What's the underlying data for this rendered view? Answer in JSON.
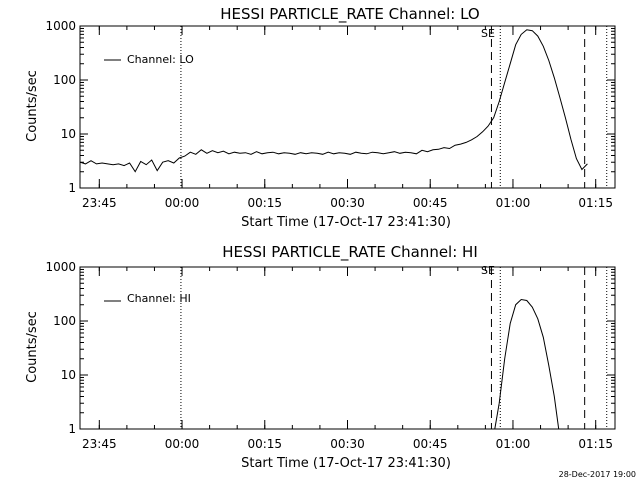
{
  "chart_data": [
    {
      "type": "line",
      "title": "HESSI PARTICLE_RATE Channel: LO",
      "xlabel": "Start Time (17-Oct-17 23:41:30)",
      "ylabel": "Counts/sec",
      "yscale": "log",
      "ylim": [
        1,
        1000
      ],
      "xlim_minutes": [
        0,
        97
      ],
      "grid": false,
      "x_tick_labels": [
        "23:45",
        "00:00",
        "00:15",
        "00:30",
        "00:45",
        "01:00",
        "01:15"
      ],
      "x_tick_minutes": [
        3.5,
        18.5,
        33.5,
        48.5,
        63.5,
        78.5,
        93.5
      ],
      "y_tick_labels": [
        "1",
        "10",
        "100",
        "1000"
      ],
      "y_tick_values": [
        1,
        10,
        100,
        1000
      ],
      "legend": {
        "entry": "Channel: LO",
        "placement": "top-left"
      },
      "markers": {
        "dotted_minutes": [
          18.3,
          76.2,
          95.5
        ],
        "dashed_minutes": [
          74.6,
          91.5
        ],
        "label": "SE",
        "label_minute": 75.4
      },
      "series": [
        {
          "name": "Channel: LO",
          "x": [
            0,
            1,
            2,
            3,
            4,
            5,
            6,
            7,
            8,
            9,
            10,
            11,
            12,
            13,
            14,
            15,
            16,
            17,
            18,
            19,
            20,
            21,
            22,
            23,
            24,
            25,
            26,
            27,
            28,
            29,
            30,
            31,
            32,
            33,
            34,
            35,
            36,
            37,
            38,
            39,
            40,
            41,
            42,
            43,
            44,
            45,
            46,
            47,
            48,
            49,
            50,
            51,
            52,
            53,
            54,
            55,
            56,
            57,
            58,
            59,
            60,
            61,
            62,
            63,
            64,
            65,
            66,
            67,
            68,
            69,
            70,
            71,
            72,
            73,
            74,
            75,
            76,
            77,
            78,
            79,
            80,
            81,
            82,
            83,
            84,
            85,
            86,
            87,
            88,
            89,
            90,
            91,
            92
          ],
          "y": [
            3.0,
            2.8,
            3.2,
            2.8,
            2.9,
            2.8,
            2.7,
            2.8,
            2.6,
            2.9,
            2.0,
            3.1,
            2.7,
            3.3,
            2.1,
            3.0,
            3.2,
            2.9,
            3.6,
            3.9,
            4.6,
            4.2,
            5.1,
            4.4,
            4.9,
            4.5,
            4.8,
            4.3,
            4.6,
            4.4,
            4.5,
            4.2,
            4.7,
            4.3,
            4.5,
            4.6,
            4.3,
            4.5,
            4.4,
            4.2,
            4.5,
            4.3,
            4.5,
            4.4,
            4.2,
            4.6,
            4.3,
            4.5,
            4.4,
            4.2,
            4.6,
            4.4,
            4.3,
            4.6,
            4.5,
            4.3,
            4.5,
            4.7,
            4.4,
            4.6,
            4.5,
            4.3,
            5.0,
            4.7,
            5.1,
            5.2,
            5.6,
            5.4,
            6.2,
            6.5,
            7.0,
            7.8,
            9.0,
            11.0,
            14.0,
            20.0,
            40.0,
            90.0,
            200.0,
            450.0,
            700.0,
            850.0,
            820.0,
            650.0,
            420.0,
            230.0,
            110.0,
            48.0,
            20.0,
            8.0,
            3.5,
            2.2,
            2.8
          ]
        }
      ]
    },
    {
      "type": "line",
      "title": "HESSI PARTICLE_RATE Channel: HI",
      "xlabel": "Start Time (17-Oct-17 23:41:30)",
      "ylabel": "Counts/sec",
      "yscale": "log",
      "ylim": [
        1,
        1000
      ],
      "xlim_minutes": [
        0,
        97
      ],
      "grid": false,
      "x_tick_labels": [
        "23:45",
        "00:00",
        "00:15",
        "00:30",
        "00:45",
        "01:00",
        "01:15"
      ],
      "x_tick_minutes": [
        3.5,
        18.5,
        33.5,
        48.5,
        63.5,
        78.5,
        93.5
      ],
      "y_tick_labels": [
        "1",
        "10",
        "100",
        "1000"
      ],
      "y_tick_values": [
        1,
        10,
        100,
        1000
      ],
      "legend": {
        "entry": "Channel: HI",
        "placement": "top-left"
      },
      "markers": {
        "dotted_minutes": [
          18.3,
          76.2,
          95.5
        ],
        "dashed_minutes": [
          74.6,
          91.5
        ],
        "label": "SE",
        "label_minute": 75.4
      },
      "series": [
        {
          "name": "Channel: HI",
          "x": [
            75.2,
            76.0,
            77.0,
            78.0,
            79.0,
            80.0,
            81.0,
            82.0,
            83.0,
            84.0,
            85.0,
            86.0,
            86.8
          ],
          "y": [
            1.0,
            3.0,
            20.0,
            90.0,
            200.0,
            250.0,
            240.0,
            180.0,
            110.0,
            50.0,
            15.0,
            4.0,
            1.0
          ]
        }
      ]
    }
  ],
  "footer": {
    "timestamp": "28-Dec-2017 19:00"
  }
}
